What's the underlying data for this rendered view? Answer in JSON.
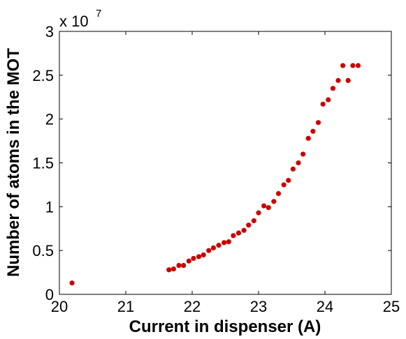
{
  "chart_data": {
    "type": "scatter",
    "xlabel": "Current in dispenser (A)",
    "ylabel": "Number of atoms in the MOT",
    "xlim": [
      20,
      25
    ],
    "ylim": [
      0,
      3
    ],
    "y_scale_factor_label": "x 10",
    "y_scale_factor_exponent": "7",
    "x_ticks": [
      "20",
      "21",
      "22",
      "23",
      "24",
      "25"
    ],
    "y_ticks": [
      "0",
      "0.5",
      "1",
      "1.5",
      "2",
      "2.5",
      "3"
    ],
    "grid": false,
    "marker_color": "#cc0000",
    "series": [
      {
        "x": [
          20.19,
          21.65,
          21.72,
          21.8,
          21.87,
          21.95,
          22.02,
          22.1,
          22.17,
          22.25,
          22.32,
          22.4,
          22.48,
          22.55,
          22.62,
          22.7,
          22.78,
          22.85,
          22.93,
          23.0,
          23.08,
          23.15,
          23.23,
          23.3,
          23.38,
          23.45,
          23.52,
          23.6,
          23.67,
          23.75,
          23.82,
          23.9,
          23.97,
          24.05,
          24.12,
          24.2,
          24.27,
          24.35,
          24.42,
          24.5
        ],
        "y": [
          0.13,
          0.28,
          0.29,
          0.33,
          0.33,
          0.38,
          0.41,
          0.43,
          0.45,
          0.5,
          0.53,
          0.56,
          0.59,
          0.6,
          0.67,
          0.7,
          0.73,
          0.79,
          0.84,
          0.93,
          1.01,
          0.99,
          1.06,
          1.15,
          1.25,
          1.3,
          1.43,
          1.5,
          1.6,
          1.78,
          1.86,
          1.96,
          2.17,
          2.22,
          2.35,
          2.44,
          2.61,
          2.44,
          2.61,
          2.61
        ]
      }
    ]
  }
}
